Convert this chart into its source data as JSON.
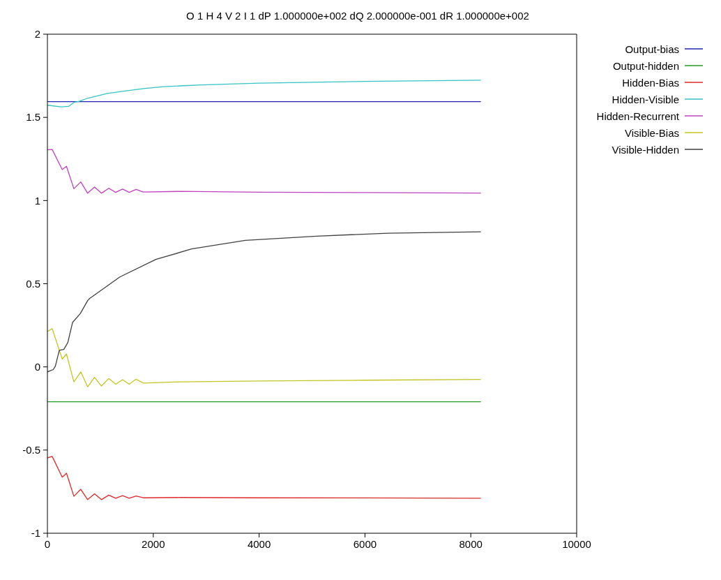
{
  "chart_data": {
    "type": "line",
    "title": "O 1 H 4 V 2 I 1 dP 1.000000e+002 dQ 2.000000e-001 dR 1.000000e+002",
    "xlim": [
      0,
      10000
    ],
    "xticks": [
      0,
      2000,
      4000,
      6000,
      8000,
      10000
    ],
    "ylim": [
      -1,
      2
    ],
    "yticks": [
      -1,
      -0.5,
      0,
      0.5,
      1,
      1.5,
      2
    ],
    "grid": false,
    "legend": "right",
    "marker": "none",
    "line_style": "solid",
    "series": [
      {
        "name": "Output-bias",
        "color": "#2222bb",
        "x": [
          0,
          8190
        ],
        "values": [
          1.595,
          1.595
        ]
      },
      {
        "name": "Output-hidden",
        "color": "#229922",
        "x": [
          0,
          8190
        ],
        "values": [
          -0.21,
          -0.21
        ]
      },
      {
        "name": "Hidden-Bias",
        "color": "#e02828",
        "x": [
          0,
          90,
          280,
          360,
          500,
          630,
          760,
          890,
          1020,
          1160,
          1290,
          1420,
          1545,
          1675,
          1810,
          2500,
          4000,
          6000,
          8190
        ],
        "values": [
          -0.547,
          -0.538,
          -0.663,
          -0.639,
          -0.778,
          -0.736,
          -0.798,
          -0.763,
          -0.798,
          -0.771,
          -0.79,
          -0.774,
          -0.79,
          -0.776,
          -0.787,
          -0.785,
          -0.787,
          -0.788,
          -0.79
        ]
      },
      {
        "name": "Hidden-Visible",
        "color": "#33c4c4",
        "x": [
          0,
          260,
          400,
          500,
          600,
          760,
          1130,
          1490,
          1850,
          2210,
          2920,
          4000,
          6000,
          8190
        ],
        "values": [
          1.573,
          1.563,
          1.566,
          1.59,
          1.597,
          1.615,
          1.644,
          1.66,
          1.674,
          1.685,
          1.695,
          1.706,
          1.716,
          1.724
        ]
      },
      {
        "name": "Hidden-Recurrent",
        "color": "#c040c0",
        "x": [
          0,
          90,
          280,
          360,
          500,
          630,
          760,
          890,
          1020,
          1160,
          1290,
          1420,
          1545,
          1675,
          1810,
          2500,
          4000,
          6000,
          8190
        ],
        "values": [
          1.305,
          1.307,
          1.186,
          1.206,
          1.071,
          1.112,
          1.044,
          1.081,
          1.044,
          1.074,
          1.049,
          1.069,
          1.049,
          1.067,
          1.051,
          1.055,
          1.05,
          1.048,
          1.045
        ]
      },
      {
        "name": "Visible-Bias",
        "color": "#c4c420",
        "x": [
          0,
          90,
          280,
          360,
          500,
          630,
          760,
          890,
          1020,
          1160,
          1290,
          1420,
          1545,
          1675,
          1810,
          2500,
          4000,
          6000,
          8190
        ],
        "values": [
          0.213,
          0.23,
          0.047,
          0.078,
          -0.09,
          -0.03,
          -0.12,
          -0.063,
          -0.115,
          -0.07,
          -0.104,
          -0.077,
          -0.104,
          -0.074,
          -0.097,
          -0.09,
          -0.085,
          -0.08,
          -0.075
        ]
      },
      {
        "name": "Visible-Hidden",
        "color": "#404040",
        "x": [
          0,
          110,
          150,
          225,
          310,
          385,
          475,
          620,
          763,
          800,
          1370,
          2050,
          2725,
          3740,
          5090,
          6440,
          8190
        ],
        "values": [
          -0.03,
          -0.016,
          0.004,
          0.1,
          0.105,
          0.146,
          0.267,
          0.32,
          0.4,
          0.412,
          0.541,
          0.646,
          0.709,
          0.761,
          0.786,
          0.804,
          0.812
        ]
      }
    ]
  }
}
